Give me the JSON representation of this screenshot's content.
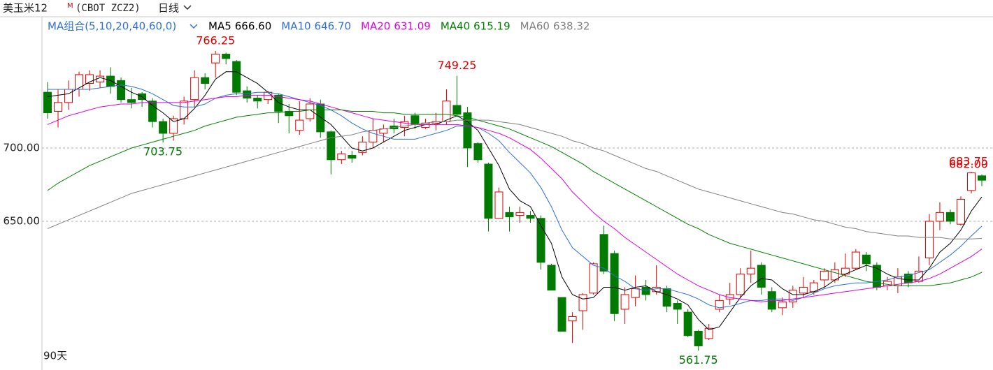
{
  "chart_data": {
    "type": "candlestick",
    "header": {
      "symbol": "美玉米12",
      "superscript": "M",
      "code": "(CBOT  ZCZ2)",
      "period": "日线"
    },
    "legend_title": "MA组合(5,10,20,40,60,0)",
    "period_label": "90天",
    "up_color": "#e00000",
    "down_color": "#007a00",
    "ylim": [
      549.5,
      787.6
    ],
    "yticks": [
      {
        "value": 650,
        "label": "650.00"
      },
      {
        "value": 700,
        "label": "700.00"
      }
    ],
    "grid": true,
    "open": [
      738,
      725,
      731,
      740,
      744,
      745,
      749,
      746,
      733,
      737,
      732,
      718,
      710,
      720,
      733,
      748,
      758,
      764,
      759,
      739,
      734,
      733,
      736,
      725,
      712,
      720,
      730,
      711,
      692,
      695,
      697,
      704,
      710,
      715,
      714,
      722,
      714,
      717,
      718,
      729,
      724,
      703,
      689,
      652,
      656,
      654,
      654,
      652,
      620,
      598,
      582,
      589,
      601,
      641,
      628,
      590,
      598,
      605,
      602,
      604,
      594,
      588,
      575,
      570,
      590,
      597,
      600,
      614,
      620,
      602,
      591,
      595,
      601,
      602,
      610,
      610,
      614,
      618,
      627,
      620,
      606,
      606,
      614,
      609,
      625,
      650,
      656,
      648,
      671,
      681
    ],
    "close": [
      724,
      731,
      740,
      750,
      750,
      749,
      742,
      733,
      731,
      733,
      718,
      710,
      720,
      732,
      748,
      744,
      764,
      761,
      738,
      734,
      732,
      738,
      725,
      722,
      719,
      730,
      711,
      692,
      696,
      693,
      704,
      712,
      713,
      713,
      718,
      716,
      717,
      718,
      732,
      723,
      700,
      692,
      652,
      670,
      653,
      656,
      652,
      622,
      603,
      575,
      585,
      600,
      621,
      616,
      587,
      600,
      604,
      600,
      605,
      592,
      590,
      572,
      565,
      577,
      596,
      600,
      614,
      618,
      605,
      590,
      595,
      603,
      605,
      608,
      616,
      617,
      618,
      629,
      621,
      605,
      609,
      612,
      608,
      616,
      650,
      656,
      650,
      665,
      683,
      678
    ],
    "high": [
      745,
      740,
      746,
      752,
      753,
      753,
      755,
      748,
      741,
      738,
      734,
      720,
      722,
      735,
      753,
      751,
      766.25,
      765,
      760,
      742,
      736,
      739,
      737,
      730,
      732,
      734,
      733,
      712,
      698,
      698,
      708,
      720,
      716,
      720,
      722,
      724,
      720,
      724,
      740,
      749.25,
      728,
      704,
      690,
      673,
      660,
      660,
      657,
      654,
      621,
      598,
      588,
      601,
      622,
      647,
      630,
      605,
      613,
      610,
      620,
      606,
      596,
      590,
      576,
      580,
      600,
      608,
      618,
      630,
      622,
      605,
      598,
      606,
      612,
      610,
      618,
      622,
      628,
      631,
      629,
      622,
      612,
      618,
      616,
      626,
      655,
      663,
      658,
      667,
      683.75,
      682
    ],
    "low": [
      720,
      714,
      726,
      735,
      739,
      741,
      737,
      731,
      727,
      728,
      714,
      703.75,
      705,
      716,
      728,
      740,
      748,
      757,
      736,
      731,
      727,
      730,
      717,
      710,
      709,
      718,
      707,
      682,
      689,
      690,
      695,
      700,
      704,
      710,
      708,
      713,
      713,
      712,
      716,
      721,
      687,
      690,
      643,
      652,
      643,
      649,
      649,
      617,
      603,
      575,
      567,
      576,
      600,
      614,
      582,
      580,
      592,
      596,
      600,
      588,
      580,
      571,
      561.75,
      569,
      588,
      593,
      598,
      608,
      600,
      588,
      586,
      591,
      598,
      600,
      605,
      608,
      612,
      617,
      616,
      603,
      603,
      601,
      605,
      608,
      620,
      644,
      648,
      647,
      669,
      674
    ],
    "series": [
      {
        "name": "MA5",
        "color": "#000000",
        "legend_value": {
          "value": 666.6,
          "label": "666.60"
        },
        "values": [
          735,
          736,
          737,
          741,
          745,
          748,
          746,
          742,
          738,
          735,
          729,
          724,
          718,
          720,
          727,
          736,
          747,
          752,
          752,
          748,
          744,
          738,
          731,
          728,
          726,
          726,
          721,
          716,
          708,
          700,
          698,
          700,
          704,
          708,
          712,
          714,
          716,
          716,
          719,
          722,
          718,
          712,
          700,
          688,
          672,
          664,
          660,
          647,
          635,
          612,
          600,
          597,
          598,
          605,
          605,
          603,
          605,
          606,
          602,
          600,
          597,
          593,
          583,
          576,
          578,
          588,
          598,
          606,
          611,
          610,
          604,
          600,
          600,
          602,
          605,
          610,
          614,
          617,
          620,
          618,
          614,
          611,
          610,
          610,
          618,
          629,
          635,
          644,
          657,
          666.6
        ]
      },
      {
        "name": "MA10",
        "color": "#2f6fd6",
        "legend_value": {
          "value": 646.7,
          "label": "646.70"
        },
        "values": [
          740,
          740,
          740,
          740,
          740,
          741,
          742,
          743,
          742,
          740,
          737,
          733,
          729,
          728,
          728,
          730,
          734,
          736,
          737,
          737,
          738,
          738,
          737,
          735,
          733,
          731,
          729,
          726,
          722,
          717,
          713,
          710,
          708,
          706,
          706,
          706,
          708,
          710,
          712,
          715,
          715,
          714,
          710,
          705,
          697,
          690,
          683,
          673,
          660,
          644,
          632,
          626,
          620,
          618,
          613,
          609,
          604,
          603,
          604,
          604,
          602,
          600,
          597,
          593,
          591,
          592,
          594,
          596,
          596,
          597,
          597,
          596,
          598,
          601,
          604,
          606,
          607,
          608,
          608,
          609,
          610,
          612,
          613,
          615,
          617,
          622,
          627,
          633,
          640,
          646.7
        ]
      },
      {
        "name": "MA20",
        "color": "#e000e0",
        "legend_value": {
          "value": 631.09,
          "label": "631.09"
        },
        "values": [
          716,
          719,
          722,
          724,
          726,
          728,
          729,
          730,
          730,
          731,
          731,
          731,
          731,
          731,
          732,
          733,
          734,
          735,
          735,
          736,
          736,
          736,
          735,
          734,
          733,
          732,
          730,
          728,
          726,
          724,
          722,
          720,
          719,
          718,
          717,
          716,
          716,
          716,
          716,
          716,
          715,
          714,
          712,
          710,
          707,
          703,
          699,
          693,
          686,
          679,
          670,
          663,
          656,
          650,
          645,
          639,
          634,
          629,
          624,
          619,
          614,
          610,
          606,
          603,
          600,
          598,
          597,
          596,
          595,
          596,
          596,
          597,
          598,
          599,
          600,
          601,
          602,
          603,
          604,
          605,
          606,
          607,
          608,
          609,
          611,
          614,
          618,
          622,
          626,
          631.09
        ]
      },
      {
        "name": "MA40",
        "color": "#008000",
        "legend_value": {
          "value": 615.19,
          "label": "615.19"
        },
        "values": [
          671,
          676,
          680,
          684,
          688,
          691,
          694,
          697,
          700,
          702,
          704,
          706,
          708,
          710,
          712,
          715,
          717,
          719,
          721,
          722,
          723,
          724,
          724,
          725,
          725,
          726,
          726,
          726,
          726,
          725,
          725,
          725,
          724,
          724,
          723,
          723,
          723,
          723,
          723,
          722,
          721,
          719,
          717,
          715,
          713,
          710,
          707,
          704,
          701,
          697,
          693,
          689,
          684,
          680,
          676,
          672,
          668,
          664,
          660,
          656,
          652,
          648,
          645,
          641,
          638,
          635,
          633,
          631,
          629,
          627,
          625,
          623,
          621,
          619,
          617,
          615,
          613,
          611,
          609,
          608,
          607,
          606,
          606,
          606,
          606,
          607,
          608,
          610,
          612,
          615.19
        ]
      },
      {
        "name": "MA60",
        "color": "#808080",
        "legend_value": {
          "value": 638.32,
          "label": "638.32"
        },
        "values": [
          645,
          648,
          651,
          654,
          657,
          660,
          663,
          666,
          669,
          671,
          673,
          675,
          677,
          679,
          681,
          683,
          685,
          687,
          689,
          691,
          693,
          695,
          697,
          699,
          701,
          703,
          705,
          707,
          708,
          709,
          711,
          712,
          713,
          714,
          715,
          716,
          717,
          718,
          718,
          719,
          719,
          719,
          719,
          718,
          717,
          716,
          714,
          712,
          710,
          708,
          705,
          703,
          700,
          698,
          695,
          692,
          689,
          686,
          684,
          681,
          678,
          675,
          672,
          670,
          668,
          666,
          664,
          662,
          660,
          658,
          656,
          655,
          653,
          651,
          650,
          648,
          646,
          645,
          643,
          642,
          641,
          640,
          640,
          639,
          639,
          639,
          638,
          638,
          638,
          638.32
        ]
      }
    ],
    "annotations": [
      {
        "value": 766.25,
        "label": "766.25"
      },
      {
        "value": 703.75,
        "label": "703.75"
      },
      {
        "value": 682,
        "label": "682.00"
      },
      {
        "value": 749.25,
        "label": "749.25"
      },
      {
        "value": 561.75,
        "label": "561.75"
      },
      {
        "value": 683.75,
        "label": "683.75"
      }
    ]
  }
}
